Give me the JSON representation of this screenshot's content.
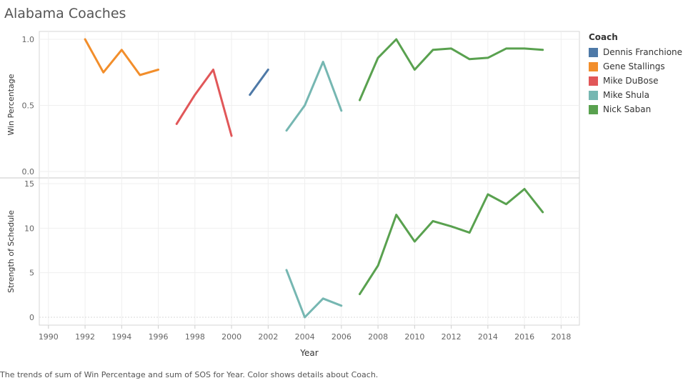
{
  "title": "Alabama Coaches",
  "caption": "The trends of sum of Win Percentage and sum of SOS for Year.  Color shows details about Coach.",
  "legend": {
    "title": "Coach",
    "items": [
      {
        "label": "Dennis Franchione",
        "color": "#4e79a7"
      },
      {
        "label": "Gene Stallings",
        "color": "#f28e2b"
      },
      {
        "label": "Mike DuBose",
        "color": "#e15759"
      },
      {
        "label": "Mike Shula",
        "color": "#76b7b2"
      },
      {
        "label": "Nick Saban",
        "color": "#59a14f"
      }
    ]
  },
  "chart_data": [
    {
      "type": "line",
      "ylabel": "Win Percentage",
      "xlabel": "",
      "ylim": [
        0,
        1.0
      ],
      "xlim": [
        1989.5,
        2019
      ],
      "yticks": [
        {
          "value": 0,
          "label": "0.0"
        },
        {
          "value": 0.5,
          "label": "0.5"
        },
        {
          "value": 1.0,
          "label": "1.0"
        }
      ],
      "grid": true,
      "series": [
        {
          "name": "Gene Stallings",
          "color": "#f28e2b",
          "x": [
            1992,
            1993,
            1994,
            1995,
            1996
          ],
          "y": [
            1.0,
            0.75,
            0.92,
            0.73,
            0.77
          ]
        },
        {
          "name": "Mike DuBose",
          "color": "#e15759",
          "x": [
            1997,
            1998,
            1999,
            2000
          ],
          "y": [
            0.36,
            0.58,
            0.77,
            0.27
          ]
        },
        {
          "name": "Dennis Franchione",
          "color": "#4e79a7",
          "x": [
            2001,
            2002
          ],
          "y": [
            0.58,
            0.77
          ]
        },
        {
          "name": "Mike Shula",
          "color": "#76b7b2",
          "x": [
            2003,
            2004,
            2005,
            2006
          ],
          "y": [
            0.31,
            0.5,
            0.83,
            0.46
          ]
        },
        {
          "name": "Nick Saban",
          "color": "#59a14f",
          "x": [
            2007,
            2008,
            2009,
            2010,
            2011,
            2012,
            2013,
            2014,
            2015,
            2016,
            2017
          ],
          "y": [
            0.54,
            0.86,
            1.0,
            0.77,
            0.92,
            0.93,
            0.85,
            0.86,
            0.93,
            0.93,
            0.92
          ]
        }
      ]
    },
    {
      "type": "line",
      "ylabel": "Strength of Schedule",
      "xlabel": "Year",
      "ylim": [
        -0.8,
        15.2
      ],
      "xlim": [
        1989.5,
        2019
      ],
      "yticks": [
        {
          "value": 0,
          "label": "0"
        },
        {
          "value": 5,
          "label": "5"
        },
        {
          "value": 10,
          "label": "10"
        },
        {
          "value": 15,
          "label": "15"
        }
      ],
      "xticks": [
        {
          "value": 1990,
          "label": "1990"
        },
        {
          "value": 1992,
          "label": "1992"
        },
        {
          "value": 1994,
          "label": "1994"
        },
        {
          "value": 1996,
          "label": "1996"
        },
        {
          "value": 1998,
          "label": "1998"
        },
        {
          "value": 2000,
          "label": "2000"
        },
        {
          "value": 2002,
          "label": "2002"
        },
        {
          "value": 2004,
          "label": "2004"
        },
        {
          "value": 2006,
          "label": "2006"
        },
        {
          "value": 2008,
          "label": "2008"
        },
        {
          "value": 2010,
          "label": "2010"
        },
        {
          "value": 2012,
          "label": "2012"
        },
        {
          "value": 2014,
          "label": "2014"
        },
        {
          "value": 2016,
          "label": "2016"
        },
        {
          "value": 2018,
          "label": "2018"
        }
      ],
      "grid": true,
      "series": [
        {
          "name": "Mike Shula",
          "color": "#76b7b2",
          "x": [
            2003,
            2004,
            2005,
            2006
          ],
          "y": [
            5.3,
            0.0,
            2.1,
            1.3
          ]
        },
        {
          "name": "Nick Saban",
          "color": "#59a14f",
          "x": [
            2007,
            2008,
            2009,
            2010,
            2011,
            2012,
            2013,
            2014,
            2015,
            2016,
            2017
          ],
          "y": [
            2.6,
            5.8,
            11.5,
            8.5,
            10.8,
            10.2,
            9.5,
            13.8,
            12.7,
            14.4,
            11.8
          ]
        }
      ]
    }
  ]
}
